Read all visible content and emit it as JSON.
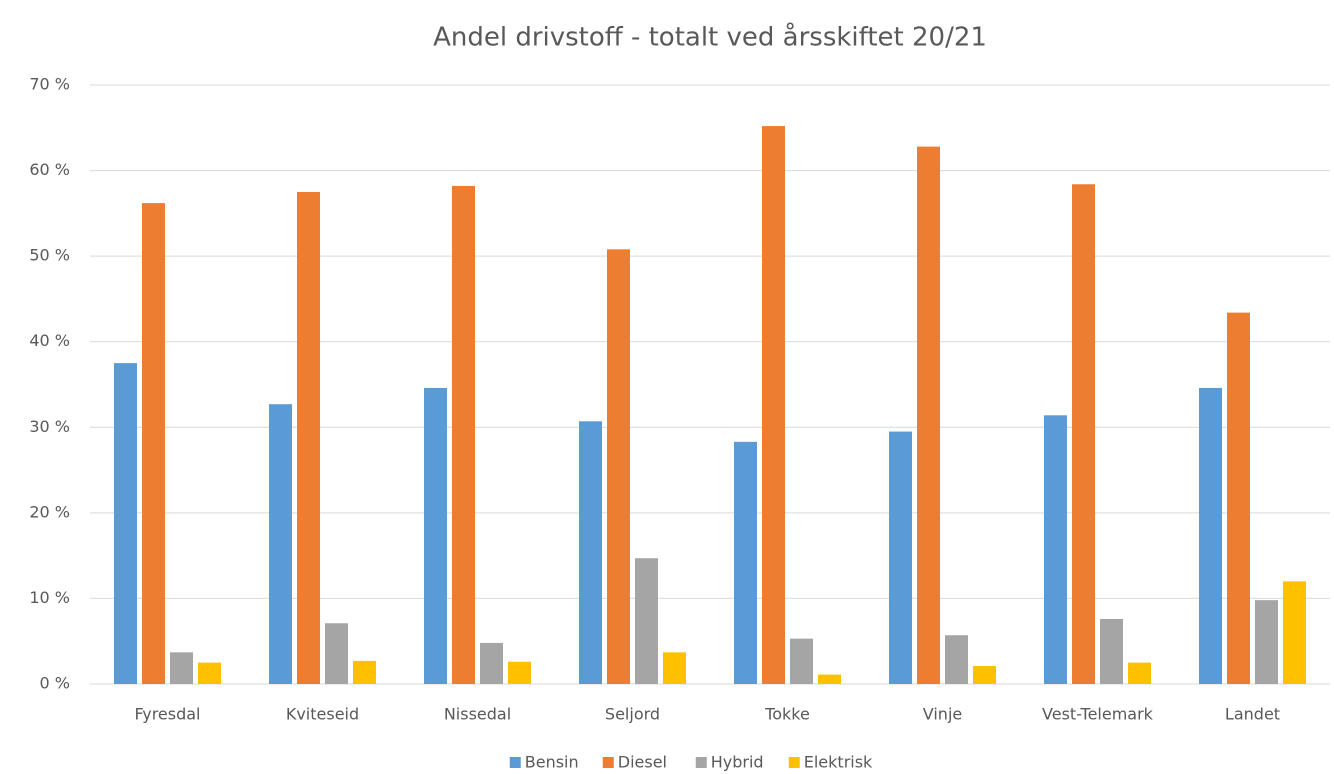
{
  "chart_data": {
    "type": "bar",
    "title": "Andel drivstoff - totalt ved årsskiftet 20/21",
    "categories": [
      "Fyresdal",
      "Kviteseid",
      "Nissedal",
      "Seljord",
      "Tokke",
      "Vinje",
      "Vest-Telemark",
      "Landet"
    ],
    "series": [
      {
        "name": "Bensin",
        "color": "#5b9bd5",
        "values": [
          37.5,
          32.7,
          34.6,
          30.7,
          28.3,
          29.5,
          31.4,
          34.6
        ]
      },
      {
        "name": "Diesel",
        "color": "#ed7d31",
        "values": [
          56.2,
          57.5,
          58.2,
          50.8,
          65.2,
          62.8,
          58.4,
          43.4
        ]
      },
      {
        "name": "Hybrid",
        "color": "#a5a5a5",
        "values": [
          3.7,
          7.1,
          4.8,
          14.7,
          5.3,
          5.7,
          7.6,
          9.8
        ]
      },
      {
        "name": "Elektrisk",
        "color": "#ffc000",
        "values": [
          2.5,
          2.7,
          2.6,
          3.7,
          1.1,
          2.1,
          2.5,
          12.0
        ]
      }
    ],
    "ylim": [
      0,
      70
    ],
    "yticks": [
      {
        "value": 0,
        "label": "0 %"
      },
      {
        "value": 10,
        "label": "10 %"
      },
      {
        "value": 20,
        "label": "20 %"
      },
      {
        "value": 30,
        "label": "30 %"
      },
      {
        "value": 40,
        "label": "40 %"
      },
      {
        "value": 50,
        "label": "50 %"
      },
      {
        "value": 60,
        "label": "60 %"
      },
      {
        "value": 70,
        "label": "70 %"
      }
    ],
    "grid": true,
    "legend": "bottom"
  }
}
